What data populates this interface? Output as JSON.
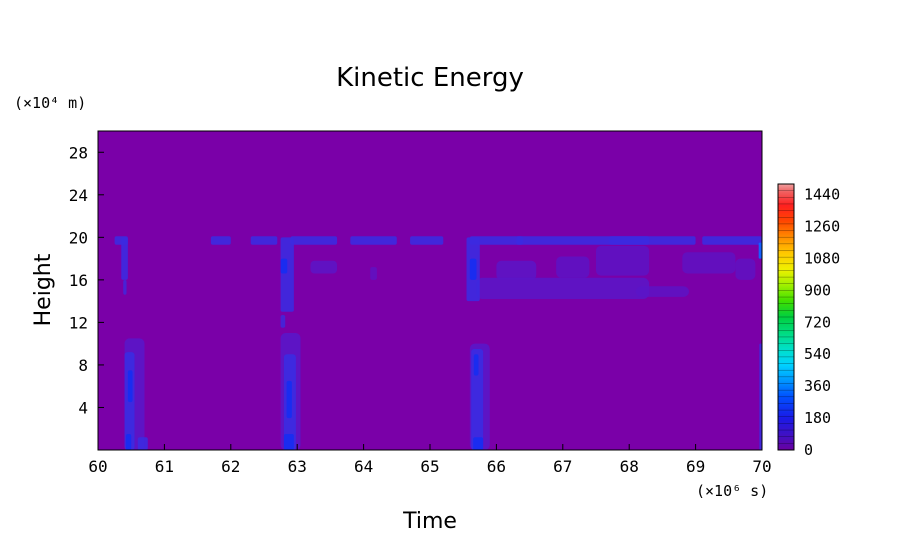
{
  "chart_data": {
    "type": "heatmap",
    "title": "Kinetic Energy",
    "xlabel": "Time",
    "ylabel": "Height",
    "x_unit": "(×10⁶ s)",
    "y_unit": "(×10⁴ m)",
    "xlim": [
      60,
      70
    ],
    "ylim": [
      0,
      30
    ],
    "x_ticks": [
      "60",
      "61",
      "62",
      "63",
      "64",
      "65",
      "66",
      "67",
      "68",
      "69",
      "70"
    ],
    "y_ticks": [
      "4",
      "8",
      "12",
      "16",
      "20",
      "24",
      "28"
    ],
    "colorbar": {
      "range": [
        0,
        1500
      ],
      "ticks": [
        "0",
        "180",
        "360",
        "540",
        "720",
        "900",
        "1080",
        "1260",
        "1440"
      ]
    },
    "background_value": 0,
    "colors": {
      "background": "#7a00a8",
      "low": "#5a16c8",
      "mid": "#3c2ae0",
      "high": "#1a2cf0",
      "peak": "#1560ff"
    }
  }
}
